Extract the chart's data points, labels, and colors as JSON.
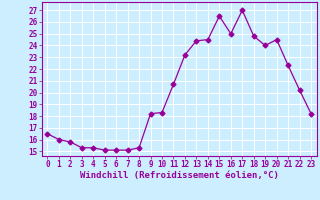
{
  "x": [
    0,
    1,
    2,
    3,
    4,
    5,
    6,
    7,
    8,
    9,
    10,
    11,
    12,
    13,
    14,
    15,
    16,
    17,
    18,
    19,
    20,
    21,
    22,
    23
  ],
  "y": [
    16.5,
    16.0,
    15.8,
    15.3,
    15.3,
    15.1,
    15.1,
    15.1,
    15.3,
    18.2,
    18.3,
    20.7,
    23.2,
    24.4,
    24.5,
    26.5,
    25.0,
    27.0,
    24.8,
    24.0,
    24.5,
    22.3,
    20.2,
    18.2
  ],
  "line_color": "#990099",
  "marker": "D",
  "marker_size": 2.5,
  "bg_color": "#cceeff",
  "grid_color": "#ffffff",
  "xlabel": "Windchill (Refroidissement éolien,°C)",
  "ylabel_ticks": [
    15,
    16,
    17,
    18,
    19,
    20,
    21,
    22,
    23,
    24,
    25,
    26,
    27
  ],
  "xlim": [
    -0.5,
    23.5
  ],
  "ylim": [
    14.6,
    27.7
  ],
  "tick_label_color": "#990099",
  "xlabel_color": "#990099",
  "tick_font_size": 5.5,
  "xlabel_font_size": 6.5
}
